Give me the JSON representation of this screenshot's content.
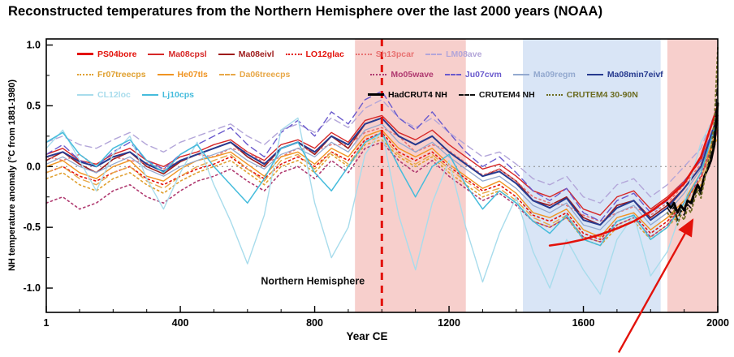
{
  "page": {
    "title": "Reconstructed temperatures from the Northern Hemisphere over the last 2000 years (NOAA)"
  },
  "chart_data": {
    "type": "line",
    "title": "Reconstructed temperatures from the Northern Hemisphere over the last 2000 years (NOAA)",
    "xlabel": "Year CE",
    "ylabel": "NH temperature anomaly (°C from 1881-1980)",
    "xlim": [
      1,
      2000
    ],
    "ylim": [
      -1.2,
      1.05
    ],
    "grid": false,
    "legend_position": "top-inside",
    "x_ticks": [
      {
        "v": 1,
        "label": "1"
      },
      {
        "v": 400,
        "label": "400"
      },
      {
        "v": 800,
        "label": "800"
      },
      {
        "v": 1200,
        "label": "1200"
      },
      {
        "v": 1600,
        "label": "1600"
      },
      {
        "v": 2000,
        "label": "2000"
      }
    ],
    "y_ticks": [
      {
        "v": 1.0,
        "label": "1.0"
      },
      {
        "v": 0.5,
        "label": "0.5"
      },
      {
        "v": 0.0,
        "label": "0.0"
      },
      {
        "v": -0.5,
        "label": "-0.5"
      },
      {
        "v": -1.0,
        "label": "-1.0"
      }
    ],
    "x_minor": {
      "start": 100,
      "end": 1900,
      "step": 100
    },
    "y_minor": {
      "start": -1.0,
      "end": 1.0,
      "step": 0.25
    },
    "bands": [
      {
        "name": "medieval-warm-period",
        "x0": 920,
        "x1": 1250,
        "color": "#f0a8a2",
        "opacity": 0.55
      },
      {
        "name": "little-ice-age",
        "x0": 1420,
        "x1": 1830,
        "color": "#c9daf2",
        "opacity": 0.7
      },
      {
        "name": "modern-warming",
        "x0": 1850,
        "x1": 2000,
        "color": "#f0a8a2",
        "opacity": 0.55
      }
    ],
    "annotations": {
      "plot_label": "Northern Hemisphere",
      "plot_label_x": 640,
      "plot_label_y": -0.97,
      "vline_year": 1000,
      "vline_color": "#e3120b",
      "arrow": {
        "x1": 1705,
        "y1": -1.53,
        "x2": 1925,
        "y2": -0.44
      },
      "arrow_color": "#e3120b"
    },
    "proxy_years": [
      1,
      50,
      100,
      150,
      200,
      250,
      300,
      350,
      400,
      450,
      500,
      550,
      600,
      650,
      700,
      750,
      800,
      850,
      900,
      950,
      1000,
      1050,
      1100,
      1150,
      1200,
      1250,
      1300,
      1350,
      1400,
      1450,
      1500,
      1550,
      1600,
      1650,
      1700,
      1750,
      1800,
      1850,
      1900,
      1950,
      2000
    ],
    "series": [
      {
        "name": "Ma08cpsl",
        "color": "#d62828",
        "width": 1.4,
        "style": "solid",
        "x_ref": "proxy_years",
        "y": [
          0.1,
          0.15,
          0.05,
          0.02,
          0.1,
          0.15,
          0.05,
          0.0,
          0.08,
          0.12,
          0.18,
          0.22,
          0.12,
          0.05,
          0.18,
          0.22,
          0.15,
          0.28,
          0.2,
          0.38,
          0.42,
          0.28,
          0.22,
          0.3,
          0.18,
          0.08,
          -0.02,
          0.02,
          -0.08,
          -0.2,
          -0.25,
          -0.18,
          -0.35,
          -0.4,
          -0.25,
          -0.2,
          -0.35,
          -0.25,
          -0.12,
          0.05,
          0.4
        ]
      },
      {
        "name": "Ma08eivl",
        "color": "#9e1b1b",
        "width": 1.6,
        "style": "solid",
        "x_ref": "proxy_years",
        "y": [
          0.05,
          0.12,
          0.02,
          -0.05,
          0.06,
          0.12,
          0.0,
          -0.06,
          0.04,
          0.1,
          0.15,
          0.2,
          0.08,
          0.0,
          0.15,
          0.2,
          0.1,
          0.25,
          0.15,
          0.35,
          0.4,
          0.25,
          0.18,
          0.25,
          0.12,
          0.02,
          -0.08,
          -0.02,
          -0.12,
          -0.28,
          -0.32,
          -0.25,
          -0.42,
          -0.48,
          -0.32,
          -0.28,
          -0.42,
          -0.32,
          -0.18,
          0.0,
          0.38
        ]
      },
      {
        "name": "LO12glac",
        "color": "#e3120b",
        "width": 1.6,
        "style": "dot",
        "x_ref": "proxy_years",
        "y": [
          -0.05,
          0.0,
          -0.08,
          -0.12,
          -0.05,
          0.0,
          -0.1,
          -0.15,
          -0.08,
          -0.02,
          0.02,
          0.08,
          -0.02,
          -0.1,
          0.02,
          0.08,
          0.0,
          0.12,
          0.05,
          0.22,
          0.28,
          0.12,
          0.05,
          0.12,
          0.0,
          -0.1,
          -0.2,
          -0.15,
          -0.25,
          -0.4,
          -0.45,
          -0.38,
          -0.55,
          -0.6,
          -0.45,
          -0.4,
          -0.55,
          -0.45,
          -0.3,
          -0.1,
          0.3
        ]
      },
      {
        "name": "Sh13pcar",
        "color": "#e87272",
        "width": 1.6,
        "style": "dot",
        "x_ref": "proxy_years",
        "y": [
          0.08,
          0.05,
          0.1,
          0.0,
          0.08,
          0.05,
          0.03,
          -0.02,
          0.05,
          0.1,
          0.08,
          0.15,
          0.12,
          0.03,
          0.08,
          0.15,
          0.13,
          0.18,
          0.18,
          0.28,
          0.32,
          0.25,
          0.12,
          0.18,
          0.13,
          0.03,
          -0.07,
          -0.02,
          -0.12,
          -0.25,
          -0.3,
          -0.32,
          -0.4,
          -0.45,
          -0.38,
          -0.33,
          -0.4,
          -0.3,
          -0.15,
          0.02,
          0.35
        ]
      },
      {
        "name": "LM08ave",
        "color": "#b3a6d9",
        "width": 1.4,
        "style": "dash",
        "x_ref": "proxy_years",
        "y": [
          0.2,
          0.25,
          0.18,
          0.15,
          0.22,
          0.28,
          0.18,
          0.12,
          0.2,
          0.25,
          0.3,
          0.35,
          0.25,
          0.18,
          0.3,
          0.35,
          0.28,
          0.4,
          0.32,
          0.48,
          0.55,
          0.4,
          0.32,
          0.4,
          0.28,
          0.18,
          0.08,
          0.12,
          0.02,
          -0.1,
          -0.15,
          -0.08,
          -0.25,
          -0.3,
          -0.15,
          -0.1,
          -0.25,
          -0.15,
          0.0,
          0.15,
          0.5
        ]
      },
      {
        "name": "Fr07treecps",
        "color": "#e0a030",
        "width": 1.6,
        "style": "dot",
        "x_ref": "proxy_years",
        "y": [
          -0.1,
          -0.05,
          -0.15,
          -0.2,
          -0.1,
          -0.05,
          -0.15,
          -0.22,
          -0.12,
          -0.05,
          0.0,
          0.05,
          -0.05,
          -0.15,
          0.0,
          0.05,
          -0.05,
          0.1,
          0.0,
          0.18,
          0.22,
          0.08,
          0.0,
          0.08,
          -0.05,
          -0.15,
          -0.25,
          -0.2,
          -0.3,
          -0.45,
          -0.5,
          -0.42,
          -0.6,
          -0.65,
          -0.5,
          -0.45,
          -0.6,
          -0.5,
          -0.35,
          -0.15,
          0.25
        ]
      },
      {
        "name": "He07tls",
        "color": "#f09422",
        "width": 1.4,
        "style": "solid",
        "x_ref": "proxy_years",
        "y": [
          0.0,
          0.05,
          -0.05,
          -0.1,
          0.0,
          0.05,
          -0.08,
          -0.12,
          -0.02,
          0.05,
          0.08,
          0.12,
          0.02,
          -0.08,
          0.08,
          0.12,
          0.02,
          0.15,
          0.08,
          0.25,
          0.3,
          0.15,
          0.08,
          0.15,
          0.02,
          -0.08,
          -0.18,
          -0.12,
          -0.22,
          -0.38,
          -0.42,
          -0.35,
          -0.52,
          -0.58,
          -0.42,
          -0.38,
          -0.52,
          -0.42,
          -0.28,
          -0.05,
          0.32
        ]
      },
      {
        "name": "Da06treecps",
        "color": "#e8a848",
        "width": 1.4,
        "style": "dash",
        "x_ref": "proxy_years",
        "y": [
          -0.05,
          0.0,
          -0.1,
          -0.15,
          -0.05,
          0.0,
          -0.12,
          -0.18,
          -0.08,
          0.0,
          0.05,
          0.1,
          -0.02,
          -0.12,
          0.05,
          0.1,
          -0.02,
          0.12,
          0.02,
          0.2,
          0.25,
          0.1,
          0.02,
          0.1,
          -0.02,
          -0.12,
          -0.22,
          -0.18,
          -0.28,
          -0.42,
          -0.48,
          -0.4,
          -0.58,
          -0.62,
          -0.48,
          -0.42,
          -0.58,
          -0.48,
          -0.32,
          -0.1,
          0.28
        ]
      },
      {
        "name": "Mo05wave",
        "color": "#b03a70",
        "width": 1.6,
        "style": "dot",
        "x_ref": "proxy_years",
        "y": [
          -0.3,
          -0.25,
          -0.35,
          -0.3,
          -0.2,
          -0.15,
          -0.25,
          -0.3,
          -0.2,
          -0.12,
          -0.08,
          -0.02,
          -0.12,
          -0.2,
          -0.05,
          0.0,
          -0.1,
          0.05,
          -0.05,
          0.15,
          0.2,
          0.05,
          -0.05,
          0.05,
          -0.08,
          -0.18,
          -0.28,
          -0.22,
          -0.32,
          -0.45,
          -0.5,
          -0.42,
          -0.58,
          -0.62,
          -0.48,
          -0.42,
          -0.58,
          -0.48,
          -0.3,
          -0.08,
          0.3
        ]
      },
      {
        "name": "Ju07cvm",
        "color": "#6a5acd",
        "width": 1.4,
        "style": "dash",
        "x_ref": "proxy_years",
        "y": [
          0.1,
          0.18,
          0.05,
          0.0,
          0.12,
          0.2,
          0.05,
          -0.02,
          0.1,
          0.18,
          0.25,
          0.32,
          0.18,
          0.08,
          0.28,
          0.38,
          0.25,
          0.45,
          0.35,
          0.55,
          0.62,
          0.4,
          0.3,
          0.45,
          0.28,
          0.12,
          0.0,
          0.08,
          -0.05,
          -0.2,
          -0.28,
          -0.18,
          -0.38,
          -0.45,
          -0.28,
          -0.22,
          -0.38,
          -0.28,
          -0.12,
          0.05,
          0.42
        ]
      },
      {
        "name": "Ma09regm",
        "color": "#93a9cf",
        "width": 1.3,
        "style": "solid",
        "x_ref": "proxy_years",
        "y": [
          0.02,
          0.08,
          0.0,
          -0.05,
          0.02,
          0.08,
          -0.02,
          -0.08,
          0.0,
          0.05,
          0.1,
          0.15,
          0.05,
          -0.02,
          0.1,
          0.15,
          0.08,
          0.2,
          0.12,
          0.3,
          0.35,
          0.2,
          0.12,
          0.2,
          0.08,
          -0.02,
          -0.12,
          -0.08,
          -0.18,
          -0.32,
          -0.38,
          -0.3,
          -0.48,
          -0.52,
          -0.38,
          -0.32,
          -0.48,
          -0.38,
          -0.22,
          -0.02,
          0.42
        ]
      },
      {
        "name": "Ma08min7eivf",
        "color": "#263a8f",
        "width": 2.0,
        "style": "solid",
        "x_ref": "proxy_years",
        "y": [
          0.08,
          0.12,
          0.04,
          0.0,
          0.08,
          0.12,
          0.02,
          -0.04,
          0.05,
          0.1,
          0.15,
          0.2,
          0.1,
          0.02,
          0.15,
          0.2,
          0.12,
          0.25,
          0.18,
          0.35,
          0.4,
          0.25,
          0.18,
          0.25,
          0.12,
          0.02,
          -0.08,
          -0.04,
          -0.14,
          -0.28,
          -0.34,
          -0.26,
          -0.44,
          -0.48,
          -0.34,
          -0.28,
          -0.44,
          -0.34,
          -0.18,
          0.0,
          0.42
        ]
      },
      {
        "name": "CL12loc",
        "color": "#a8dcec",
        "width": 1.4,
        "style": "solid",
        "x_ref": "proxy_years",
        "y": [
          0.15,
          0.3,
          0.05,
          -0.2,
          0.1,
          0.25,
          -0.1,
          -0.35,
          -0.05,
          0.2,
          -0.15,
          -0.45,
          -0.8,
          -0.4,
          0.3,
          0.4,
          -0.3,
          -0.75,
          -0.5,
          0.1,
          0.3,
          -0.4,
          -0.85,
          -0.3,
          0.05,
          -0.5,
          -0.95,
          -0.55,
          -0.25,
          -0.7,
          -1.0,
          -0.6,
          -0.85,
          -1.05,
          -0.6,
          -0.4,
          -0.9,
          -0.7,
          -0.3,
          0.2,
          0.45
        ]
      },
      {
        "name": "Lj10cps",
        "color": "#45bcdc",
        "width": 1.5,
        "style": "solid",
        "x_ref": "proxy_years",
        "y": [
          0.2,
          0.28,
          0.1,
          0.0,
          0.15,
          0.22,
          0.05,
          -0.05,
          0.1,
          0.18,
          0.0,
          -0.15,
          -0.3,
          -0.1,
          0.15,
          0.2,
          -0.05,
          -0.2,
          0.0,
          0.2,
          0.28,
          0.0,
          -0.25,
          0.0,
          0.1,
          -0.15,
          -0.35,
          -0.2,
          -0.3,
          -0.45,
          -0.55,
          -0.4,
          -0.6,
          -0.65,
          -0.45,
          -0.4,
          -0.6,
          -0.5,
          -0.3,
          -0.05,
          0.4
        ]
      },
      {
        "name": "PS04bore",
        "color": "#e3120b",
        "width": 2.6,
        "style": "solid",
        "x": [
          1500,
          1550,
          1600,
          1650,
          1700,
          1750,
          1800,
          1850,
          1900,
          1950,
          2000
        ],
        "y": [
          -0.65,
          -0.63,
          -0.6,
          -0.56,
          -0.51,
          -0.45,
          -0.37,
          -0.27,
          -0.14,
          0.08,
          0.5
        ]
      },
      {
        "name": "HadCRUT4 NH",
        "color": "#000000",
        "width": 2.8,
        "style": "solid",
        "x": [
          1850,
          1860,
          1870,
          1880,
          1890,
          1900,
          1910,
          1920,
          1930,
          1940,
          1950,
          1960,
          1970,
          1980,
          1990,
          2000
        ],
        "y": [
          -0.3,
          -0.34,
          -0.3,
          -0.38,
          -0.32,
          -0.36,
          -0.28,
          -0.3,
          -0.22,
          -0.15,
          -0.2,
          -0.08,
          -0.02,
          0.05,
          0.18,
          0.52
        ]
      },
      {
        "name": "CRUTEM4 NH",
        "color": "#111111",
        "width": 1.6,
        "style": "dash",
        "x": [
          1850,
          1860,
          1870,
          1880,
          1890,
          1900,
          1910,
          1920,
          1930,
          1940,
          1950,
          1960,
          1970,
          1980,
          1990,
          2000
        ],
        "y": [
          -0.34,
          -0.38,
          -0.33,
          -0.44,
          -0.36,
          -0.4,
          -0.31,
          -0.34,
          -0.25,
          -0.17,
          -0.23,
          -0.1,
          0.0,
          0.1,
          0.28,
          0.72
        ]
      },
      {
        "name": "CRUTEM4 30-90N",
        "color": "#6b6b20",
        "width": 1.8,
        "style": "dot",
        "x": [
          1850,
          1860,
          1870,
          1880,
          1890,
          1900,
          1910,
          1920,
          1930,
          1940,
          1950,
          1960,
          1970,
          1980,
          1990,
          2000
        ],
        "y": [
          -0.38,
          -0.42,
          -0.36,
          -0.48,
          -0.4,
          -0.44,
          -0.34,
          -0.38,
          -0.28,
          -0.2,
          -0.26,
          -0.12,
          0.02,
          0.15,
          0.38,
          0.98
        ]
      }
    ]
  },
  "legend": {
    "rows": [
      [
        [
          "PS04bore",
          "Ma08cpsl",
          "Ma08eivl",
          "LO12glac",
          "Sh13pcar",
          "LM08ave"
        ]
      ],
      [
        [
          "Fr07treecps",
          "He07tls",
          "Da06treecps"
        ],
        [
          "Mo05wave",
          "Ju07cvm",
          "Ma09regm",
          "Ma08min7eivf"
        ]
      ],
      [
        [
          "CL12loc",
          "Lj10cps"
        ],
        [
          "HadCRUT4 NH",
          "CRUTEM4 NH",
          "CRUTEM4 30-90N"
        ]
      ]
    ]
  }
}
